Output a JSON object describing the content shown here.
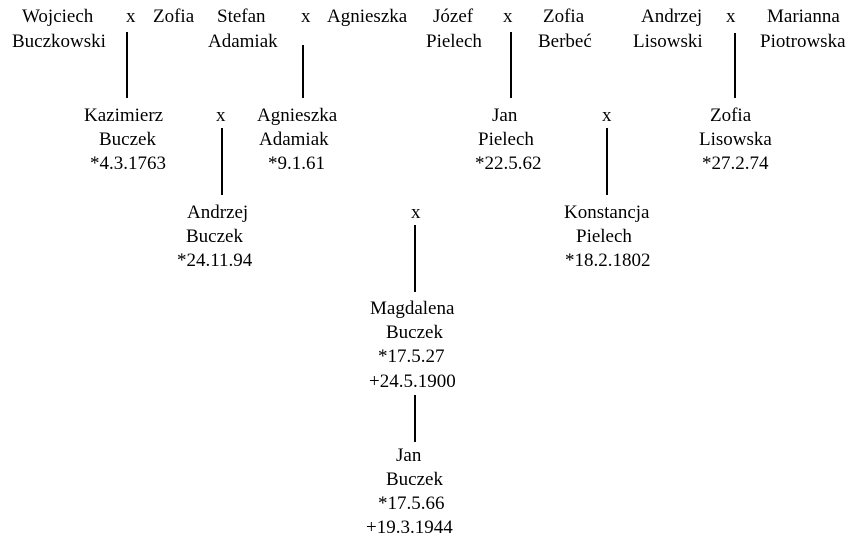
{
  "persons": [
    {
      "lines": [
        "Wojciech",
        "Buczkowski"
      ]
    },
    {
      "lines": [
        "Zofia"
      ]
    },
    {
      "lines": [
        "Stefan",
        "Adamiak"
      ]
    },
    {
      "lines": [
        "Agnieszka"
      ]
    },
    {
      "lines": [
        "Józef",
        "Pielech"
      ]
    },
    {
      "lines": [
        "Zofia",
        "Berbeć"
      ]
    },
    {
      "lines": [
        "Andrzej",
        "Lisowski"
      ]
    },
    {
      "lines": [
        "Marianna",
        "Piotrowska"
      ]
    },
    {
      "lines": [
        "Kazimierz",
        "Buczek",
        "*4.3.1763"
      ]
    },
    {
      "lines": [
        "Agnieszka",
        "Adamiak",
        "*9.1.61"
      ]
    },
    {
      "lines": [
        "Jan",
        "Pielech",
        "*22.5.62"
      ]
    },
    {
      "lines": [
        "Zofia",
        "Lisowska",
        "*27.2.74"
      ]
    },
    {
      "lines": [
        "Andrzej",
        "Buczek",
        "*24.11.94"
      ]
    },
    {
      "lines": [
        "Konstancja",
        "Pielech",
        "*18.2.1802"
      ]
    },
    {
      "lines": [
        "Magdalena",
        "Buczek",
        "*17.5.27",
        "+24.5.1900"
      ]
    },
    {
      "lines": [
        "Jan",
        "Buczek",
        "*17.5.66",
        "+19.3.1944"
      ]
    }
  ],
  "marriages": [
    "x",
    "x",
    "x",
    "x",
    "x",
    "x",
    "x"
  ]
}
